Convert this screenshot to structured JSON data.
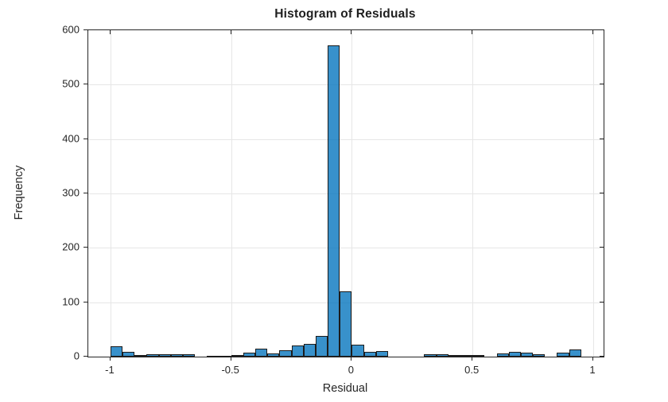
{
  "figure": {
    "title": "Histogram of Residuals",
    "xlabel": "Residual",
    "ylabel": "Frequency"
  },
  "chart_data": {
    "type": "bar",
    "subtype": "histogram",
    "title": "Histogram of Residuals",
    "xlabel": "Residual",
    "ylabel": "Frequency",
    "bin_start": -1.0,
    "bin_width": 0.05,
    "values": [
      19,
      9,
      3,
      5,
      5,
      4,
      5,
      0,
      2,
      2,
      3,
      7,
      14,
      6,
      11,
      20,
      23,
      38,
      572,
      120,
      22,
      9,
      10,
      0,
      0,
      0,
      5,
      4,
      3,
      3,
      3,
      0,
      6,
      9,
      7,
      4,
      0,
      7,
      13,
      0
    ],
    "xlim": [
      -1.092,
      1.043
    ],
    "ylim": [
      0,
      600
    ],
    "x_ticks": [
      -1,
      -0.5,
      0,
      0.5,
      1
    ],
    "x_tick_labels": [
      "-1",
      "-0.5",
      "0",
      "0.5",
      "1"
    ],
    "y_ticks": [
      0,
      100,
      200,
      300,
      400,
      500,
      600
    ],
    "y_tick_labels": [
      "0",
      "100",
      "200",
      "300",
      "400",
      "500",
      "600"
    ],
    "grid": true,
    "legend": null,
    "bar_face_color": "#0072BD",
    "bar_face_alpha": 0.78,
    "bar_edge_color": "#1c1c1c",
    "axis_color": "#262626",
    "grid_color": "#e6e6e6"
  }
}
